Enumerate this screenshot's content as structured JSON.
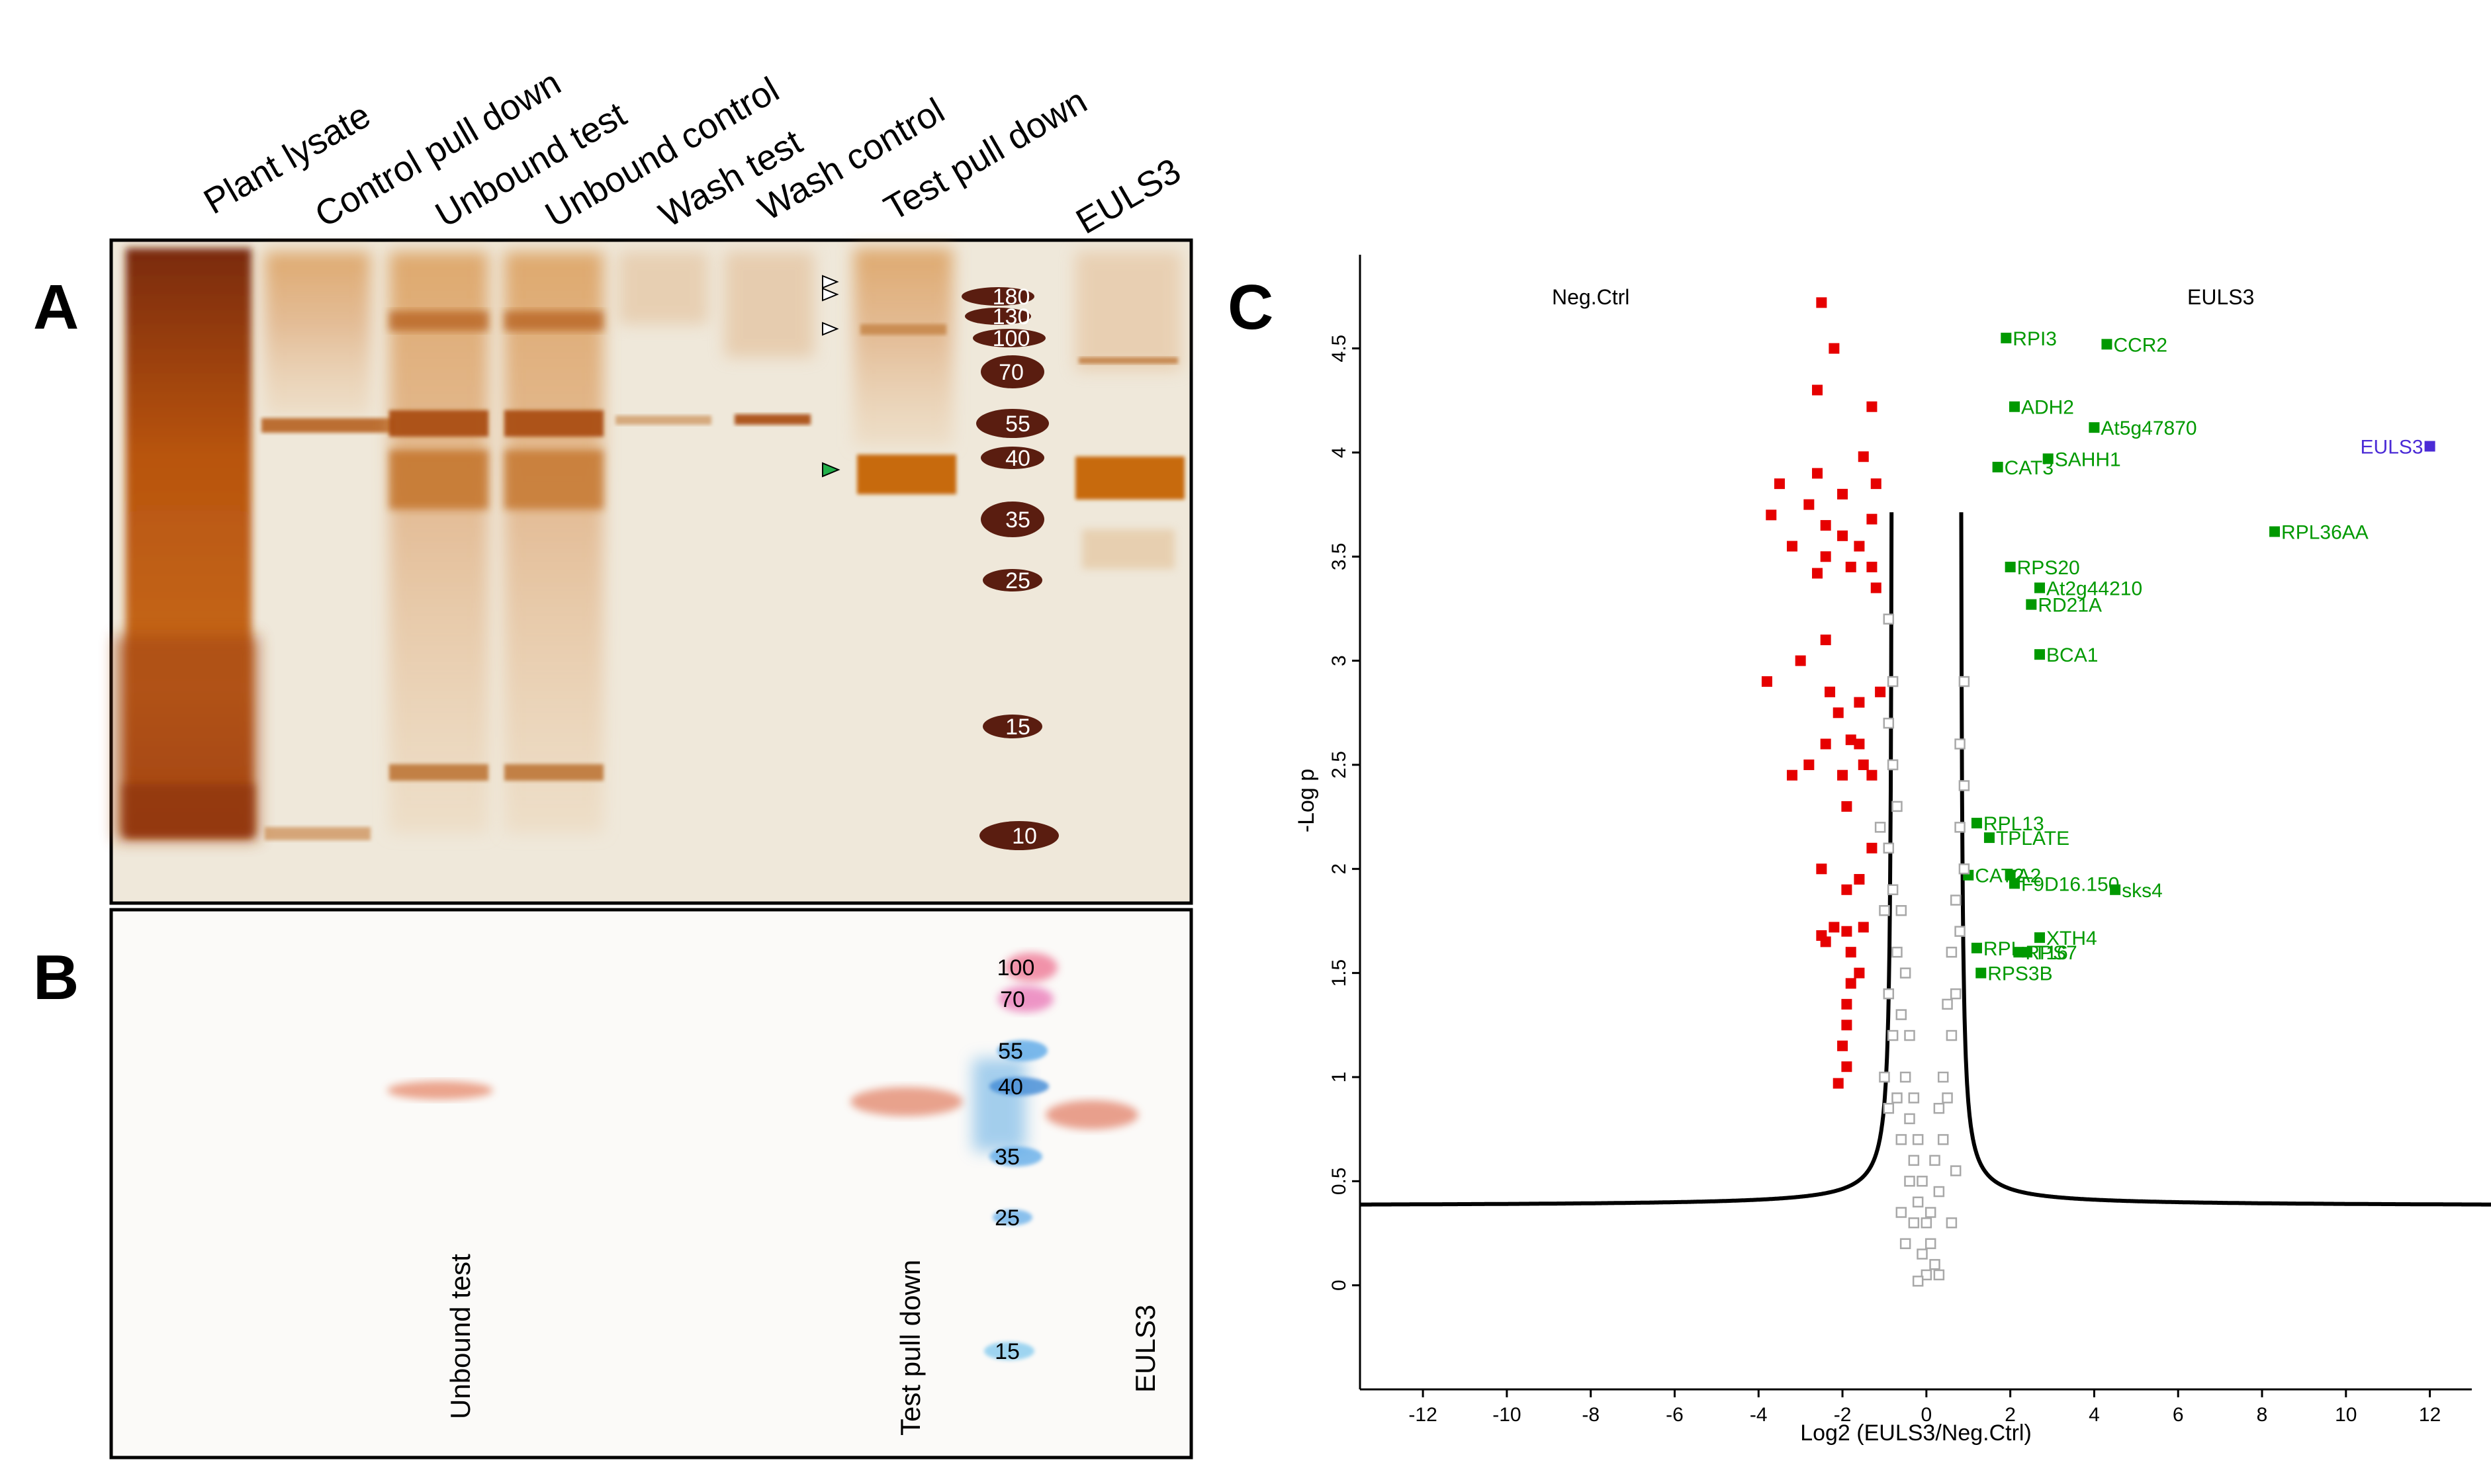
{
  "panels": {
    "A": {
      "label": "A",
      "lanes": [
        "Plant lysate",
        "Control pull down",
        "Unbound test",
        "Unbound control",
        "Wash test",
        "Wash control",
        "Test pull down",
        "EULS3"
      ],
      "marker_kda": [
        "180",
        "130",
        "100",
        "70",
        "55",
        "40",
        "35",
        "25",
        "15",
        "10"
      ]
    },
    "B": {
      "label": "B",
      "lanes": [
        "Unbound test",
        "Test pull down",
        "EULS3"
      ],
      "marker_kda": [
        "100",
        "70",
        "55",
        "40",
        "35",
        "25",
        "15"
      ]
    },
    "C": {
      "label": "C"
    }
  },
  "colors": {
    "significant_control": "#e60000",
    "significant_eulss3": "#009900",
    "bait": "#4b2bd6",
    "nonsignificant": "#a8a8a8",
    "silver_stain": "#c8741a"
  },
  "chart_data": {
    "type": "scatter",
    "title": "",
    "xlabel": "Log2 (EULS3/Neg.Ctrl)",
    "ylabel": "-Log p",
    "xlim": [
      -13.5,
      13
    ],
    "ylim": [
      -0.5,
      4.95
    ],
    "xticks": [
      -12,
      -10,
      -8,
      -6,
      -4,
      -2,
      0,
      2,
      4,
      6,
      8,
      10,
      12
    ],
    "yticks": [
      0,
      0.5,
      1,
      1.5,
      2,
      2.5,
      3,
      3.5,
      4,
      4.5
    ],
    "xtick_labels": [
      "-12",
      "-10",
      "-8",
      "-6",
      "-4",
      "-2",
      "0",
      "2",
      "4",
      "6",
      "8",
      "10",
      "12"
    ],
    "ytick_labels": [
      "0",
      "0.5",
      "1",
      "1.5",
      "2",
      "2.5",
      "3",
      "3.5",
      "4",
      "4.5"
    ],
    "side_labels": [
      "Neg.Ctrl",
      "EULS3"
    ],
    "grid": false,
    "threshold_curve": {
      "s0": 0.8,
      "c": 0.1,
      "baseline": 0.38
    },
    "series": [
      {
        "name": "",
        "color": "#e60000",
        "points": [
          [
            -2.5,
            4.72
          ],
          [
            -2.2,
            4.5
          ],
          [
            -2.6,
            4.3
          ],
          [
            -1.3,
            4.22
          ],
          [
            -1.5,
            3.98
          ],
          [
            -2.6,
            3.9
          ],
          [
            -3.5,
            3.85
          ],
          [
            -2.0,
            3.8
          ],
          [
            -1.2,
            3.85
          ],
          [
            -2.8,
            3.75
          ],
          [
            -3.7,
            3.7
          ],
          [
            -2.4,
            3.65
          ],
          [
            -1.3,
            3.68
          ],
          [
            -2.0,
            3.6
          ],
          [
            -3.2,
            3.55
          ],
          [
            -2.4,
            3.5
          ],
          [
            -1.6,
            3.55
          ],
          [
            -1.8,
            3.45
          ],
          [
            -2.6,
            3.42
          ],
          [
            -1.3,
            3.45
          ],
          [
            -1.2,
            3.35
          ],
          [
            -2.4,
            3.1
          ],
          [
            -3.0,
            3.0
          ],
          [
            -3.8,
            2.9
          ],
          [
            -2.3,
            2.85
          ],
          [
            -1.6,
            2.8
          ],
          [
            -1.1,
            2.85
          ],
          [
            -2.1,
            2.75
          ],
          [
            -1.6,
            2.6
          ],
          [
            -1.8,
            2.62
          ],
          [
            -2.4,
            2.6
          ],
          [
            -1.5,
            2.5
          ],
          [
            -2.8,
            2.5
          ],
          [
            -2.0,
            2.45
          ],
          [
            -3.2,
            2.45
          ],
          [
            -1.3,
            2.45
          ],
          [
            -1.9,
            2.3
          ],
          [
            -1.3,
            2.1
          ],
          [
            -2.5,
            2.0
          ],
          [
            -1.6,
            1.95
          ],
          [
            -1.9,
            1.9
          ],
          [
            -2.2,
            1.72
          ],
          [
            -1.5,
            1.72
          ],
          [
            -1.9,
            1.7
          ],
          [
            -2.5,
            1.68
          ],
          [
            -2.4,
            1.65
          ],
          [
            -1.8,
            1.6
          ],
          [
            -1.6,
            1.5
          ],
          [
            -1.8,
            1.45
          ],
          [
            -1.9,
            1.35
          ],
          [
            -1.9,
            1.25
          ],
          [
            -2.0,
            1.15
          ],
          [
            -1.9,
            1.05
          ],
          [
            -2.1,
            0.97
          ]
        ]
      },
      {
        "name": "",
        "color": "#009900",
        "points": [
          [
            1.9,
            4.55,
            "RPI3"
          ],
          [
            4.3,
            4.52,
            "CCR2"
          ],
          [
            2.1,
            4.22,
            "ADH2"
          ],
          [
            4.0,
            4.12,
            "At5g47870"
          ],
          [
            2.9,
            3.97,
            "SAHH1"
          ],
          [
            1.7,
            3.93,
            "CAT3"
          ],
          [
            8.3,
            3.62,
            "RPL36AA"
          ],
          [
            2.0,
            3.45,
            "RPS20"
          ],
          [
            2.7,
            3.35,
            "At2g44210"
          ],
          [
            2.5,
            3.27,
            "RD21A"
          ],
          [
            2.7,
            3.03,
            "BCA1"
          ],
          [
            1.2,
            2.22,
            "RPL13"
          ],
          [
            1.5,
            2.15,
            "TPLATE"
          ],
          [
            1.0,
            1.97,
            "CAT2"
          ],
          [
            2.0,
            1.97,
            "A2"
          ],
          [
            2.1,
            1.93,
            "F9D16.150"
          ],
          [
            4.5,
            1.9,
            "sks4"
          ],
          [
            2.7,
            1.67,
            "XTH4"
          ],
          [
            1.2,
            1.62,
            "RPL"
          ],
          [
            2.2,
            1.6,
            "RPS7"
          ],
          [
            2.4,
            1.6,
            "T16"
          ],
          [
            1.3,
            1.5,
            "RPS3B"
          ]
        ]
      },
      {
        "name": "",
        "color": "#4b2bd6",
        "points": [
          [
            12.0,
            4.03,
            "EULS3"
          ]
        ]
      },
      {
        "name": "",
        "color": "#a8a8a8",
        "points": [
          [
            -0.9,
            3.2
          ],
          [
            -0.8,
            2.9
          ],
          [
            -0.9,
            2.7
          ],
          [
            -0.8,
            2.5
          ],
          [
            -0.7,
            2.3
          ],
          [
            -0.9,
            2.1
          ],
          [
            -0.8,
            1.9
          ],
          [
            -0.6,
            1.8
          ],
          [
            -1.0,
            1.8
          ],
          [
            -0.7,
            1.6
          ],
          [
            -0.5,
            1.5
          ],
          [
            -0.9,
            1.4
          ],
          [
            -0.6,
            1.3
          ],
          [
            -0.4,
            1.2
          ],
          [
            -0.8,
            1.2
          ],
          [
            -0.5,
            1.0
          ],
          [
            -0.3,
            0.9
          ],
          [
            -0.7,
            0.9
          ],
          [
            -0.4,
            0.8
          ],
          [
            -0.2,
            0.7
          ],
          [
            -0.6,
            0.7
          ],
          [
            -0.3,
            0.6
          ],
          [
            -0.1,
            0.5
          ],
          [
            -0.4,
            0.5
          ],
          [
            -0.2,
            0.4
          ],
          [
            0.0,
            0.3
          ],
          [
            -0.3,
            0.3
          ],
          [
            0.1,
            0.2
          ],
          [
            -0.1,
            0.15
          ],
          [
            0.0,
            0.05
          ],
          [
            0.2,
            0.1
          ],
          [
            0.1,
            0.35
          ],
          [
            0.3,
            0.45
          ],
          [
            0.2,
            0.6
          ],
          [
            0.4,
            0.7
          ],
          [
            0.3,
            0.85
          ],
          [
            0.5,
            0.9
          ],
          [
            0.4,
            1.0
          ],
          [
            0.6,
            1.2
          ],
          [
            0.5,
            1.35
          ],
          [
            0.7,
            1.4
          ],
          [
            0.6,
            1.6
          ],
          [
            0.8,
            1.7
          ],
          [
            0.7,
            1.85
          ],
          [
            0.9,
            2.0
          ],
          [
            0.8,
            2.2
          ],
          [
            0.9,
            2.4
          ],
          [
            0.8,
            2.6
          ],
          [
            0.9,
            2.9
          ],
          [
            -1.1,
            2.2
          ],
          [
            -1.0,
            1.0
          ],
          [
            -0.9,
            0.85
          ],
          [
            0.6,
            0.3
          ],
          [
            0.7,
            0.55
          ],
          [
            -0.6,
            0.35
          ],
          [
            -0.5,
            0.2
          ],
          [
            0.3,
            0.05
          ],
          [
            -0.2,
            0.02
          ]
        ]
      }
    ]
  }
}
